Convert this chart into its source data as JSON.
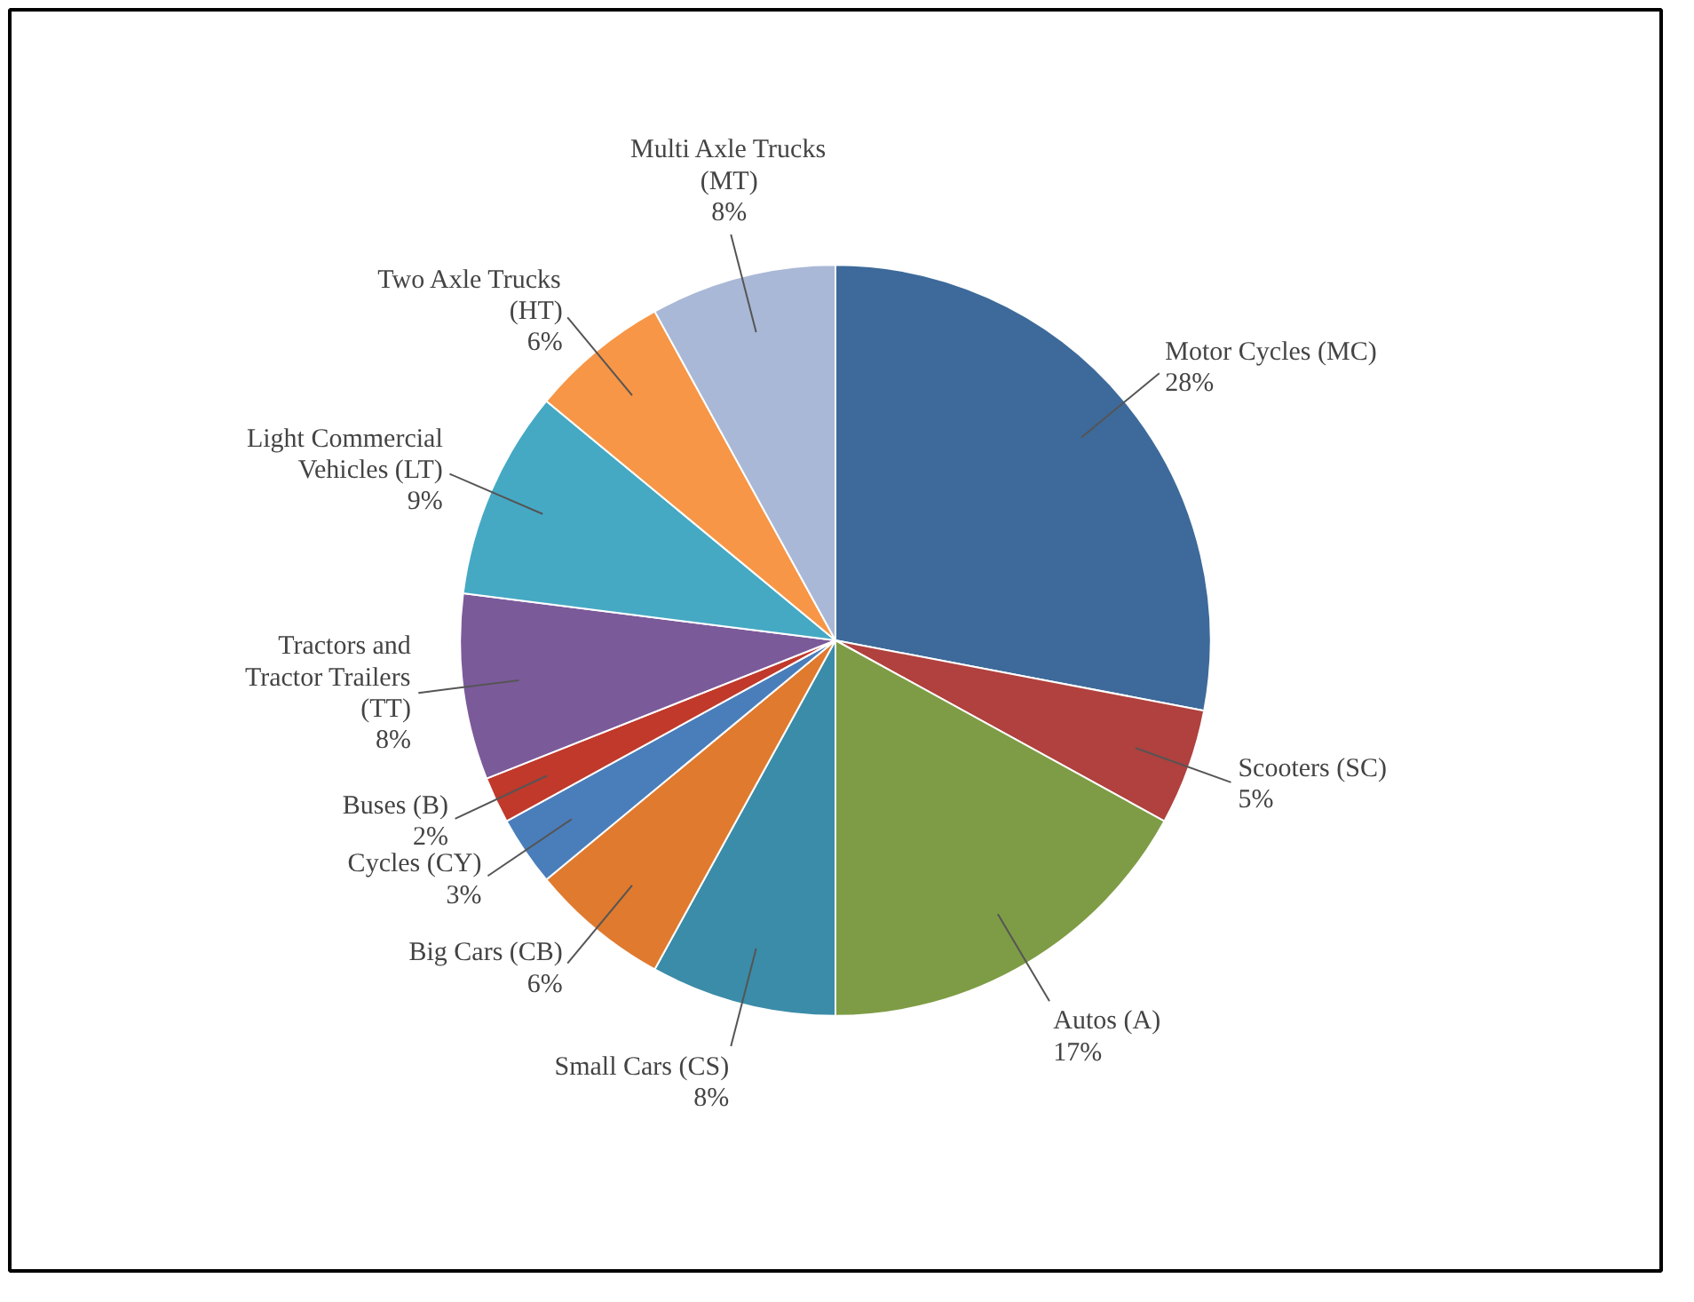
{
  "chart_data": {
    "type": "pie",
    "categories": [
      "Motor Cycles (MC)",
      "Scooters (SC)",
      "Autos (A)",
      "Small Cars (CS)",
      "Big Cars (CB)",
      "Cycles (CY)",
      "Buses (B)",
      "Tractors and Tractor Trailers (TT)",
      "Light Commercial Vehicles (LT)",
      "Two Axle Trucks (HT)",
      "Multi Axle Trucks (MT)"
    ],
    "values": [
      28,
      5,
      17,
      8,
      6,
      3,
      2,
      8,
      9,
      6,
      8
    ],
    "value_labels": [
      "28%",
      "5%",
      "17%",
      "8%",
      "6%",
      "3%",
      "2%",
      "8%",
      "9%",
      "6%",
      "8%"
    ],
    "colors": [
      "#3d6a9a",
      "#b0413e",
      "#7e9c45",
      "#3b8ca8",
      "#e07a2e",
      "#4a7ebb",
      "#c0392b",
      "#7b5a9a",
      "#45a9c4",
      "#f79646",
      "#a9b8d6"
    ]
  }
}
